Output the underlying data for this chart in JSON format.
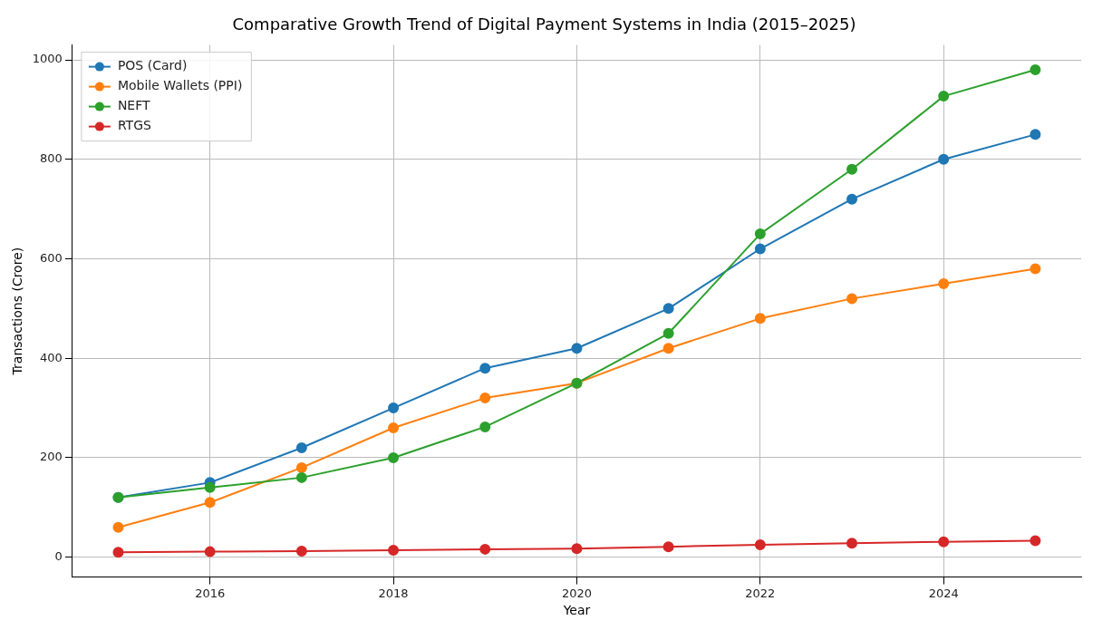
{
  "chart_data": {
    "type": "line",
    "title": "Comparative Growth Trend of Digital Payment Systems in India (2015–2025)",
    "xlabel": "Year",
    "ylabel": "Transactions (Crore)",
    "x": [
      2015,
      2016,
      2017,
      2018,
      2019,
      2020,
      2021,
      2022,
      2023,
      2024,
      2025
    ],
    "series": [
      {
        "name": "POS (Card)",
        "color": "#1f77b4",
        "values": [
          120,
          150,
          220,
          300,
          380,
          420,
          500,
          620,
          720,
          800,
          850
        ]
      },
      {
        "name": "Mobile Wallets (PPI)",
        "color": "#ff7f0e",
        "values": [
          60,
          110,
          180,
          260,
          320,
          350,
          420,
          480,
          520,
          550,
          580
        ]
      },
      {
        "name": "NEFT",
        "color": "#2ca02c",
        "values": [
          120,
          140,
          160,
          200,
          262,
          350,
          450,
          650,
          780,
          927,
          980
        ]
      },
      {
        "name": "RTGS",
        "color": "#d62728",
        "values": [
          10,
          11,
          12,
          14,
          16,
          17,
          21,
          25,
          28,
          31,
          33
        ]
      }
    ],
    "xlim": [
      2014.5,
      2025.5
    ],
    "xticks": [
      2016,
      2018,
      2020,
      2022,
      2024
    ],
    "ylim": [
      -40,
      1030
    ],
    "yticks": [
      0,
      200,
      400,
      600,
      800,
      1000
    ],
    "grid": true,
    "legend": "top left",
    "marker": "circle",
    "line_style": "solid"
  }
}
